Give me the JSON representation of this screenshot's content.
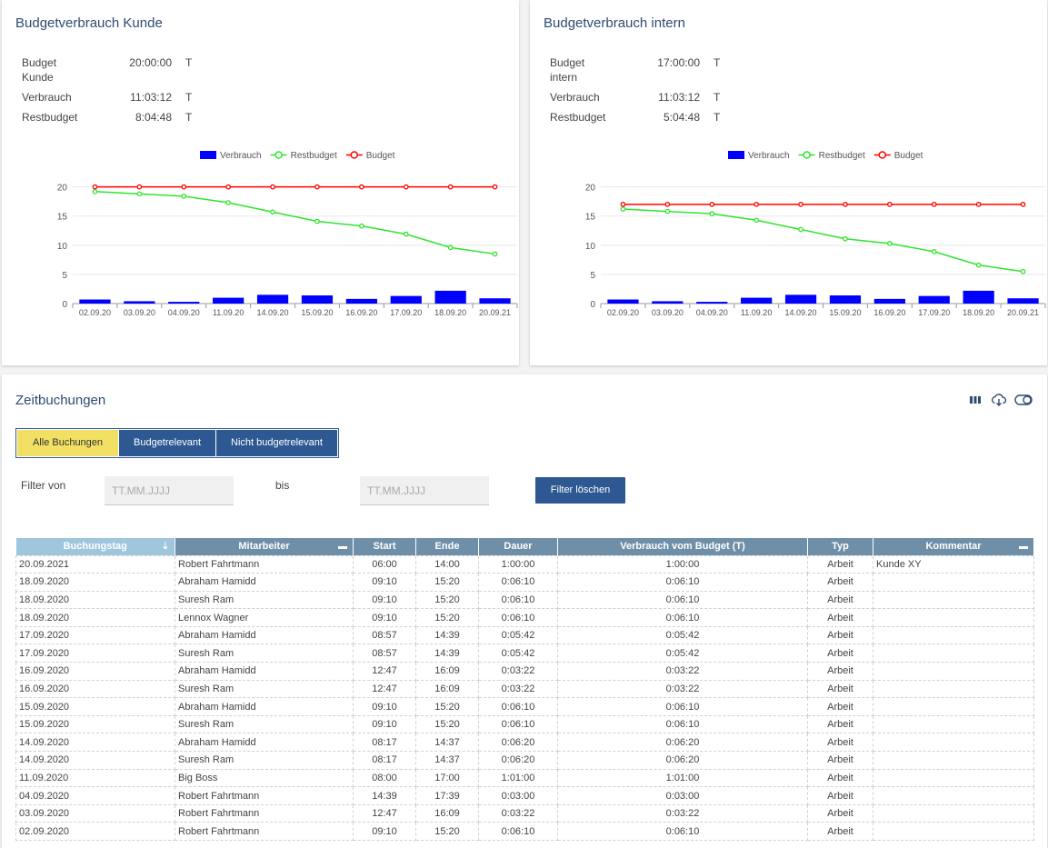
{
  "budget_kunde": {
    "title": "Budgetverbrauch Kunde",
    "rows": [
      {
        "label": "Budget Kunde",
        "value": "20:00:00",
        "unit": "T"
      },
      {
        "label": "Verbrauch",
        "value": "11:03:12",
        "unit": "T"
      },
      {
        "label": "Restbudget",
        "value": "8:04:48",
        "unit": "T"
      }
    ],
    "chart_data": {
      "type": "bar",
      "categories": [
        "02.09.20",
        "03.09.20",
        "04.09.20",
        "11.09.20",
        "14.09.20",
        "15.09.20",
        "16.09.20",
        "17.09.20",
        "18.09.20",
        "20.09.21"
      ],
      "series": [
        {
          "name": "Verbrauch",
          "type": "bar",
          "color": "#0000ff",
          "values": [
            0.7,
            0.4,
            0.3,
            1.0,
            1.5,
            1.4,
            0.8,
            1.3,
            2.2,
            0.9
          ]
        },
        {
          "name": "Restbudget",
          "type": "line",
          "color": "#2ee62e",
          "values": [
            19.2,
            18.8,
            18.4,
            17.3,
            15.7,
            14.1,
            13.3,
            11.9,
            9.6,
            8.5
          ]
        },
        {
          "name": "Budget",
          "type": "line",
          "color": "#ff0000",
          "values": [
            20,
            20,
            20,
            20,
            20,
            20,
            20,
            20,
            20,
            20
          ]
        }
      ],
      "yticks": [
        0,
        5,
        10,
        15,
        20
      ],
      "ylim": [
        0,
        21.5
      ],
      "legend": "top-center",
      "grid": true
    }
  },
  "budget_intern": {
    "title": "Budgetverbrauch intern",
    "rows": [
      {
        "label": "Budget intern",
        "value": "17:00:00",
        "unit": "T"
      },
      {
        "label": "Verbrauch",
        "value": "11:03:12",
        "unit": "T"
      },
      {
        "label": "Restbudget",
        "value": "5:04:48",
        "unit": "T"
      }
    ],
    "chart_data": {
      "type": "bar",
      "categories": [
        "02.09.20",
        "03.09.20",
        "04.09.20",
        "11.09.20",
        "14.09.20",
        "15.09.20",
        "16.09.20",
        "17.09.20",
        "18.09.20",
        "20.09.21"
      ],
      "series": [
        {
          "name": "Verbrauch",
          "type": "bar",
          "color": "#0000ff",
          "values": [
            0.7,
            0.4,
            0.3,
            1.0,
            1.5,
            1.4,
            0.8,
            1.3,
            2.2,
            0.9
          ]
        },
        {
          "name": "Restbudget",
          "type": "line",
          "color": "#2ee62e",
          "values": [
            16.2,
            15.8,
            15.4,
            14.3,
            12.7,
            11.1,
            10.3,
            8.9,
            6.6,
            5.5
          ]
        },
        {
          "name": "Budget",
          "type": "line",
          "color": "#ff0000",
          "values": [
            17,
            17,
            17,
            17,
            17,
            17,
            17,
            17,
            17,
            17
          ]
        }
      ],
      "yticks": [
        0,
        5,
        10,
        15,
        20
      ],
      "ylim": [
        0,
        21.5
      ],
      "legend": "top-center",
      "grid": true
    }
  },
  "zeitbuchungen": {
    "title": "Zeitbuchungen",
    "icons": [
      "columns-icon",
      "cloud-download-icon",
      "toggle-icon"
    ],
    "segments": [
      {
        "label": "Alle Buchungen",
        "active": true
      },
      {
        "label": "Budgetrelevant",
        "active": false
      },
      {
        "label": "Nicht budgetrelevant",
        "active": false
      }
    ],
    "filter": {
      "from_label": "Filter von",
      "to_label": "bis",
      "from_placeholder": "TT.MM.JJJJ",
      "to_placeholder": "TT.MM.JJJJ",
      "clear_label": "Filter löschen"
    },
    "columns": [
      "Buchungstag",
      "Mitarbeiter",
      "Start",
      "Ende",
      "Dauer",
      "Verbrauch vom Budget (T)",
      "Typ",
      "Kommentar"
    ],
    "rows": [
      [
        "20.09.2021",
        "Robert Fahrtmann",
        "06:00",
        "14:00",
        "1:00:00",
        "1:00:00",
        "Arbeit",
        "Kunde XY"
      ],
      [
        "18.09.2020",
        "Abraham Hamidd",
        "09:10",
        "15:20",
        "0:06:10",
        "0:06:10",
        "Arbeit",
        ""
      ],
      [
        "18.09.2020",
        "Suresh Ram",
        "09:10",
        "15:20",
        "0:06:10",
        "0:06:10",
        "Arbeit",
        ""
      ],
      [
        "18.09.2020",
        "Lennox Wagner",
        "09:10",
        "15:20",
        "0:06:10",
        "0:06:10",
        "Arbeit",
        ""
      ],
      [
        "17.09.2020",
        "Abraham Hamidd",
        "08:57",
        "14:39",
        "0:05:42",
        "0:05:42",
        "Arbeit",
        ""
      ],
      [
        "17.09.2020",
        "Suresh Ram",
        "08:57",
        "14:39",
        "0:05:42",
        "0:05:42",
        "Arbeit",
        ""
      ],
      [
        "16.09.2020",
        "Abraham Hamidd",
        "12:47",
        "16:09",
        "0:03:22",
        "0:03:22",
        "Arbeit",
        ""
      ],
      [
        "16.09.2020",
        "Suresh Ram",
        "12:47",
        "16:09",
        "0:03:22",
        "0:03:22",
        "Arbeit",
        ""
      ],
      [
        "15.09.2020",
        "Abraham Hamidd",
        "09:10",
        "15:20",
        "0:06:10",
        "0:06:10",
        "Arbeit",
        ""
      ],
      [
        "15.09.2020",
        "Suresh Ram",
        "09:10",
        "15:20",
        "0:06:10",
        "0:06:10",
        "Arbeit",
        ""
      ],
      [
        "14.09.2020",
        "Abraham Hamidd",
        "08:17",
        "14:37",
        "0:06:20",
        "0:06:20",
        "Arbeit",
        ""
      ],
      [
        "14.09.2020",
        "Suresh Ram",
        "08:17",
        "14:37",
        "0:06:20",
        "0:06:20",
        "Arbeit",
        ""
      ],
      [
        "11.09.2020",
        "Big Boss",
        "08:00",
        "17:00",
        "1:01:00",
        "1:01:00",
        "Arbeit",
        ""
      ],
      [
        "04.09.2020",
        "Robert Fahrtmann",
        "14:39",
        "17:39",
        "0:03:00",
        "0:03:00",
        "Arbeit",
        ""
      ],
      [
        "03.09.2020",
        "Robert Fahrtmann",
        "12:47",
        "16:09",
        "0:03:22",
        "0:03:22",
        "Arbeit",
        ""
      ],
      [
        "02.09.2020",
        "Robert Fahrtmann",
        "09:10",
        "15:20",
        "0:06:10",
        "0:06:10",
        "Arbeit",
        ""
      ]
    ]
  }
}
